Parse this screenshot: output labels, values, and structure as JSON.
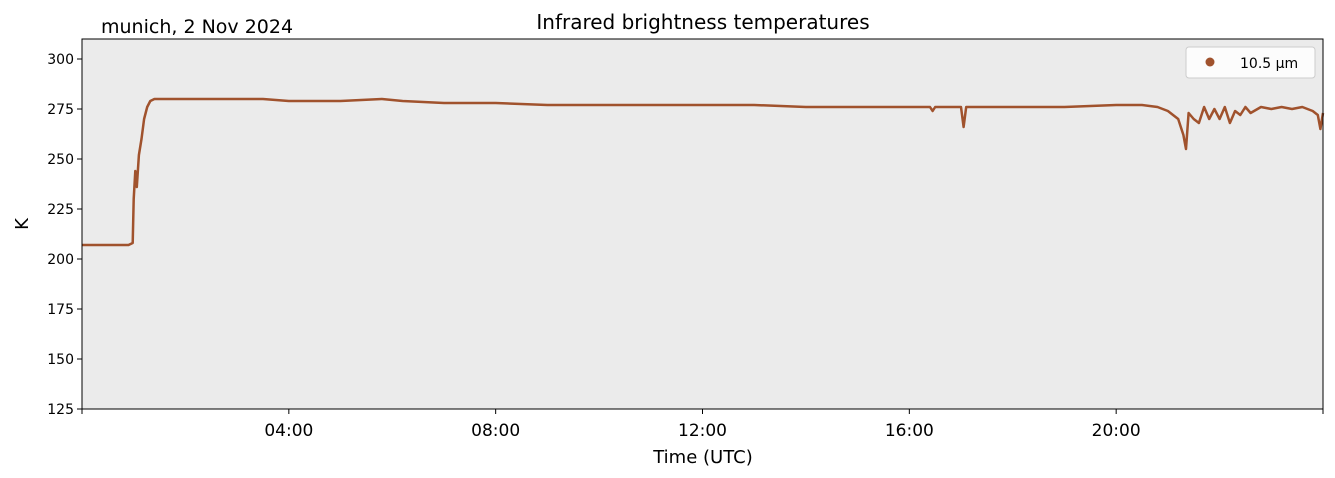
{
  "chart_data": {
    "type": "line",
    "title": "Infrared brightness temperatures",
    "subtitle": "munich, 2 Nov 2024",
    "xlabel": "Time (UTC)",
    "ylabel": "K",
    "xlim": [
      0,
      24
    ],
    "ylim": [
      125,
      310
    ],
    "x_ticks": [
      {
        "value": 4,
        "label": "04:00"
      },
      {
        "value": 8,
        "label": "08:00"
      },
      {
        "value": 12,
        "label": "12:00"
      },
      {
        "value": 16,
        "label": "16:00"
      },
      {
        "value": 20,
        "label": "20:00"
      }
    ],
    "y_ticks": [
      {
        "value": 125,
        "label": "125"
      },
      {
        "value": 150,
        "label": "150"
      },
      {
        "value": 175,
        "label": "175"
      },
      {
        "value": 200,
        "label": "200"
      },
      {
        "value": 225,
        "label": "225"
      },
      {
        "value": 250,
        "label": "250"
      },
      {
        "value": 275,
        "label": "275"
      },
      {
        "value": 300,
        "label": "300"
      }
    ],
    "grid": false,
    "background_color": "#ebebeb",
    "legend_position": "top-right",
    "series": [
      {
        "name": "10.5 µm",
        "color": "#a0522d",
        "x": [
          0.0,
          0.3,
          0.6,
          0.9,
          0.98,
          1.0,
          1.03,
          1.06,
          1.1,
          1.15,
          1.2,
          1.26,
          1.32,
          1.4,
          1.6,
          2.0,
          3.0,
          3.5,
          4.0,
          5.0,
          5.8,
          6.2,
          7.0,
          8.0,
          9.0,
          10.0,
          11.0,
          12.0,
          13.0,
          14.0,
          15.0,
          16.0,
          16.4,
          16.45,
          16.5,
          16.7,
          17.0,
          17.05,
          17.1,
          17.3,
          18.0,
          19.0,
          20.0,
          20.5,
          20.8,
          21.0,
          21.2,
          21.3,
          21.35,
          21.4,
          21.5,
          21.6,
          21.7,
          21.8,
          21.9,
          22.0,
          22.1,
          22.2,
          22.3,
          22.4,
          22.5,
          22.6,
          22.8,
          23.0,
          23.2,
          23.4,
          23.6,
          23.8,
          23.9,
          23.95,
          24.0
        ],
        "y": [
          207,
          207,
          207,
          207,
          208,
          230,
          244,
          236,
          252,
          260,
          270,
          276,
          279,
          280,
          280,
          280,
          280,
          280,
          279,
          279,
          280,
          279,
          278,
          278,
          277,
          277,
          277,
          277,
          277,
          276,
          276,
          276,
          276,
          274,
          276,
          276,
          276,
          266,
          276,
          276,
          276,
          276,
          277,
          277,
          276,
          274,
          270,
          262,
          255,
          273,
          270,
          268,
          276,
          270,
          275,
          270,
          276,
          268,
          274,
          272,
          276,
          273,
          276,
          275,
          276,
          275,
          276,
          274,
          272,
          265,
          273
        ]
      }
    ]
  }
}
